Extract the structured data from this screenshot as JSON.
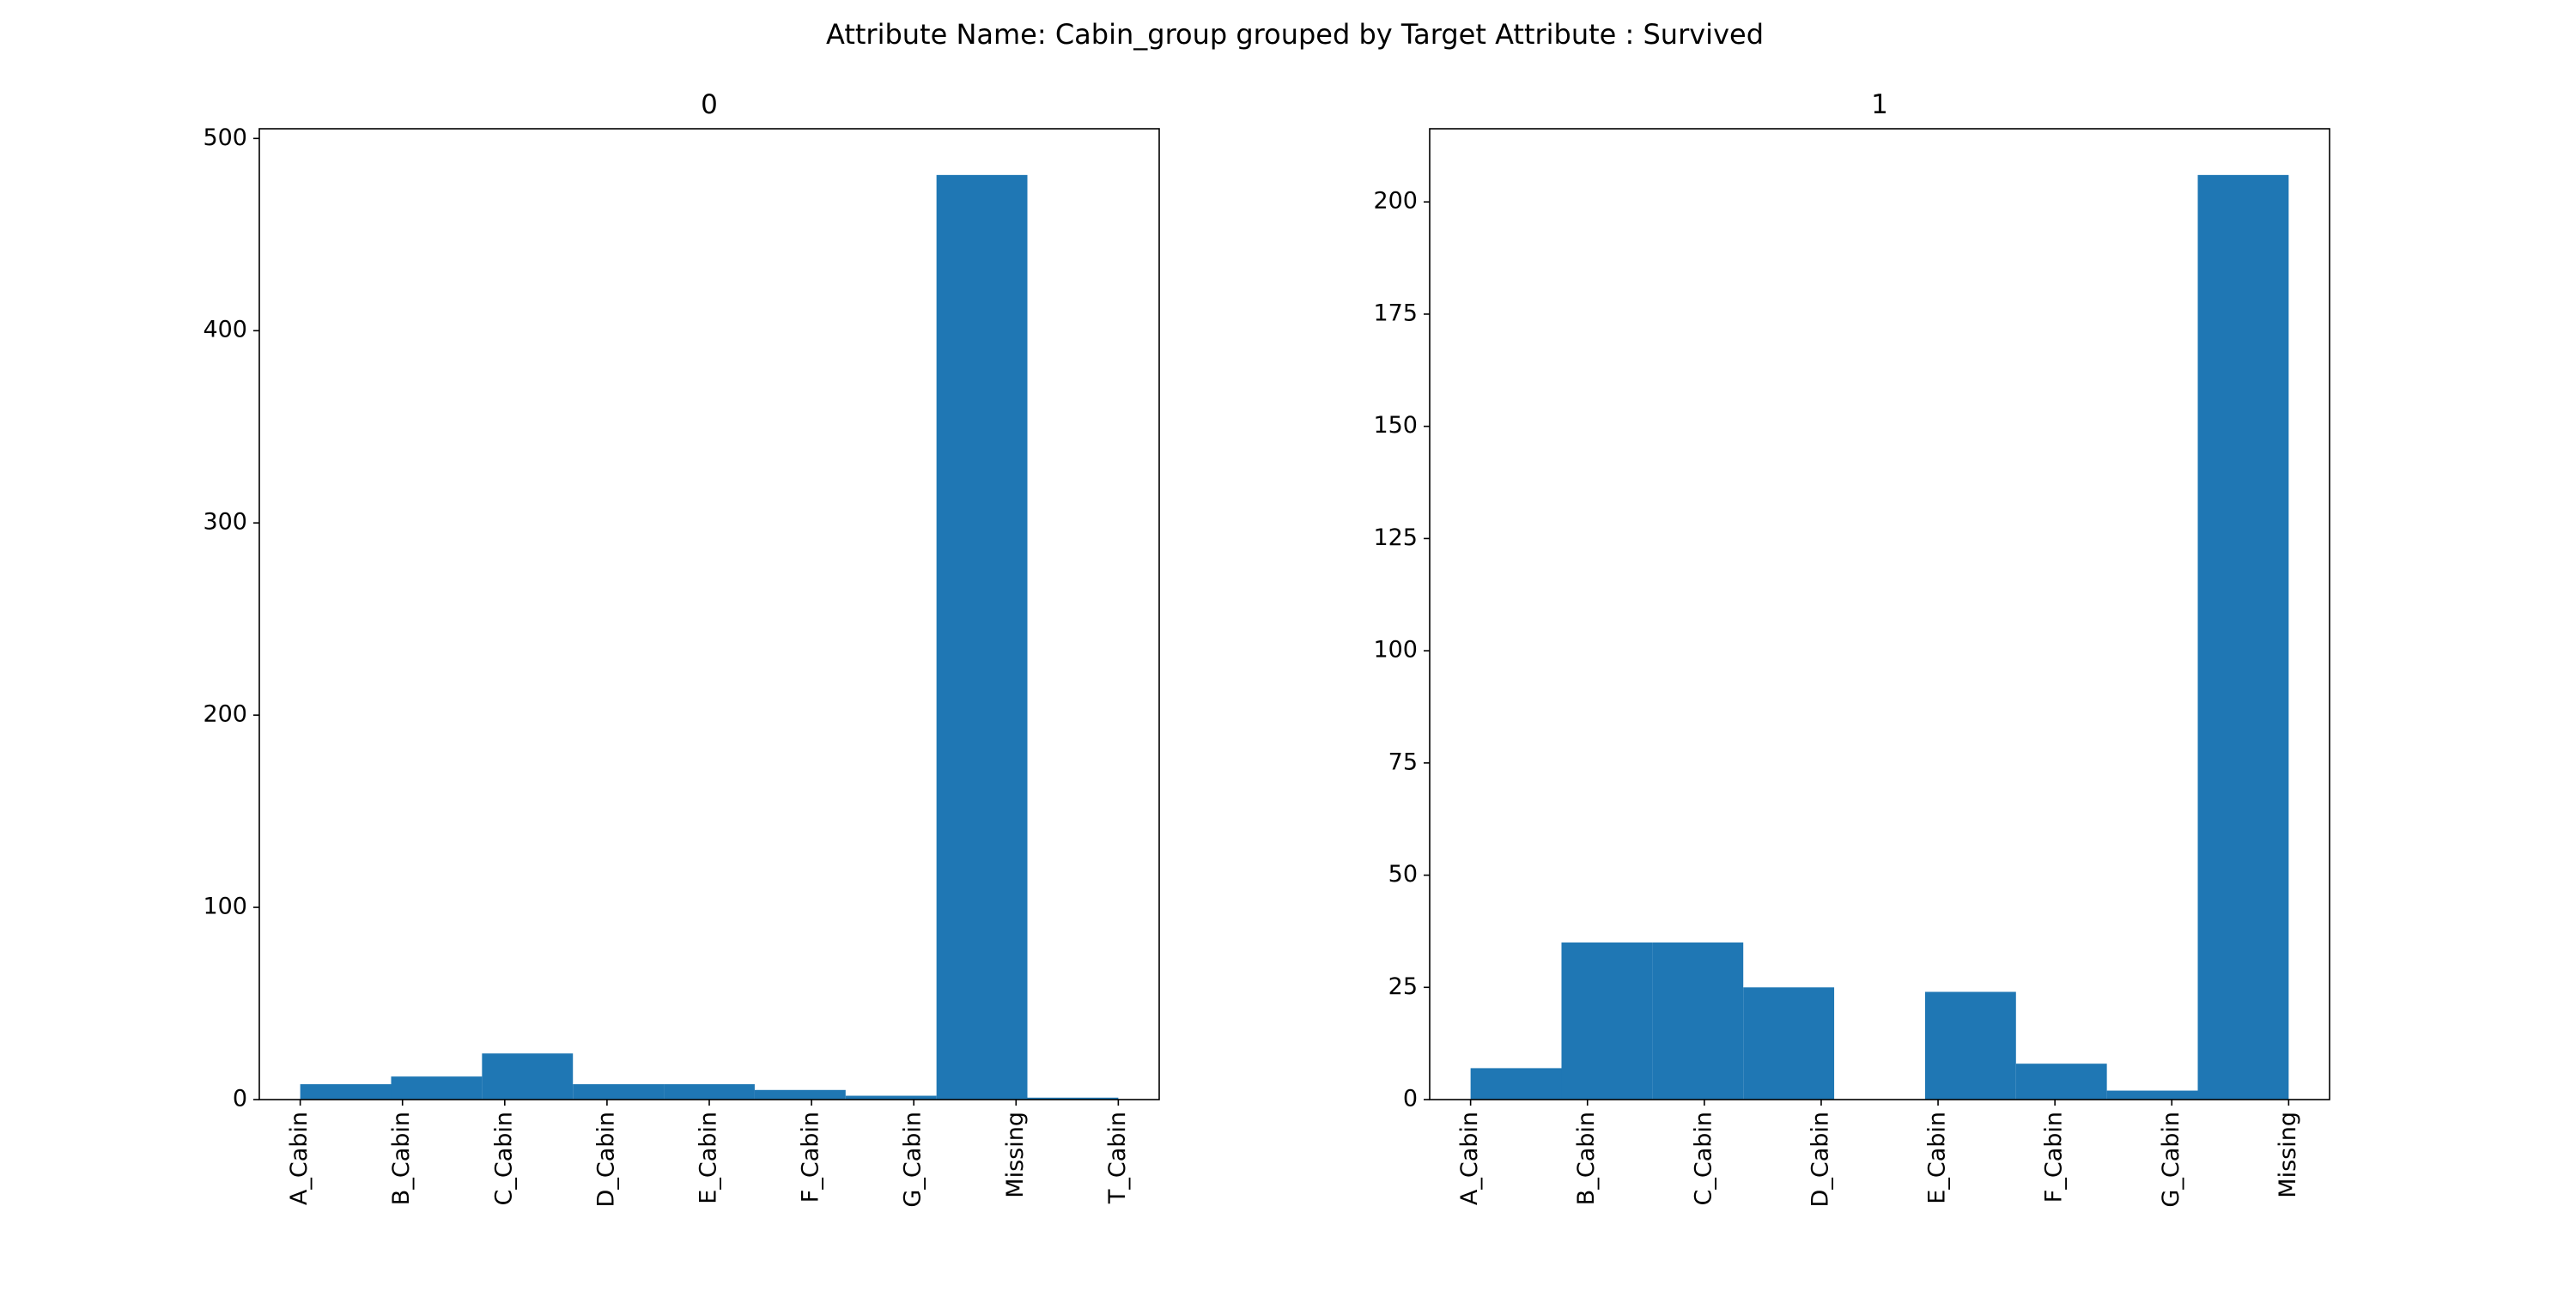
{
  "title": "Attribute Name: Cabin_group grouped by Target Attribute : Survived",
  "chart_data": [
    {
      "type": "histogram",
      "title": "0",
      "color": "#1f77b4",
      "bins": [
        0,
        0.8889,
        1.7778,
        2.6667,
        3.5556,
        4.4444,
        5.3333,
        6.2222,
        7.1111,
        8
      ],
      "counts": [
        8,
        12,
        24,
        8,
        8,
        5,
        2,
        481,
        1
      ],
      "xlim": [
        -0.4,
        8.4
      ],
      "xticks": [
        {
          "value": 0,
          "label": "A_Cabin"
        },
        {
          "value": 1,
          "label": "B_Cabin"
        },
        {
          "value": 2,
          "label": "C_Cabin"
        },
        {
          "value": 3,
          "label": "D_Cabin"
        },
        {
          "value": 4,
          "label": "E_Cabin"
        },
        {
          "value": 5,
          "label": "F_Cabin"
        },
        {
          "value": 6,
          "label": "G_Cabin"
        },
        {
          "value": 7,
          "label": "Missing"
        },
        {
          "value": 8,
          "label": "T_Cabin"
        }
      ],
      "ylim": [
        0,
        505.05
      ],
      "yticks": [
        0,
        100,
        200,
        300,
        400,
        500
      ]
    },
    {
      "type": "histogram",
      "title": "1",
      "color": "#1f77b4",
      "bins": [
        0,
        0.7778,
        1.5556,
        2.3333,
        3.1111,
        3.8889,
        4.6667,
        5.4444,
        6.2222,
        7
      ],
      "counts": [
        7,
        35,
        35,
        25,
        0,
        24,
        8,
        2,
        206
      ],
      "xlim": [
        -0.35,
        7.35
      ],
      "xticks": [
        {
          "value": 0,
          "label": "A_Cabin"
        },
        {
          "value": 1,
          "label": "B_Cabin"
        },
        {
          "value": 2,
          "label": "C_Cabin"
        },
        {
          "value": 3,
          "label": "D_Cabin"
        },
        {
          "value": 4,
          "label": "E_Cabin"
        },
        {
          "value": 5,
          "label": "F_Cabin"
        },
        {
          "value": 6,
          "label": "G_Cabin"
        },
        {
          "value": 7,
          "label": "Missing"
        }
      ],
      "ylim": [
        0,
        216.3
      ],
      "yticks": [
        0,
        25,
        50,
        75,
        100,
        125,
        150,
        175,
        200
      ]
    }
  ]
}
